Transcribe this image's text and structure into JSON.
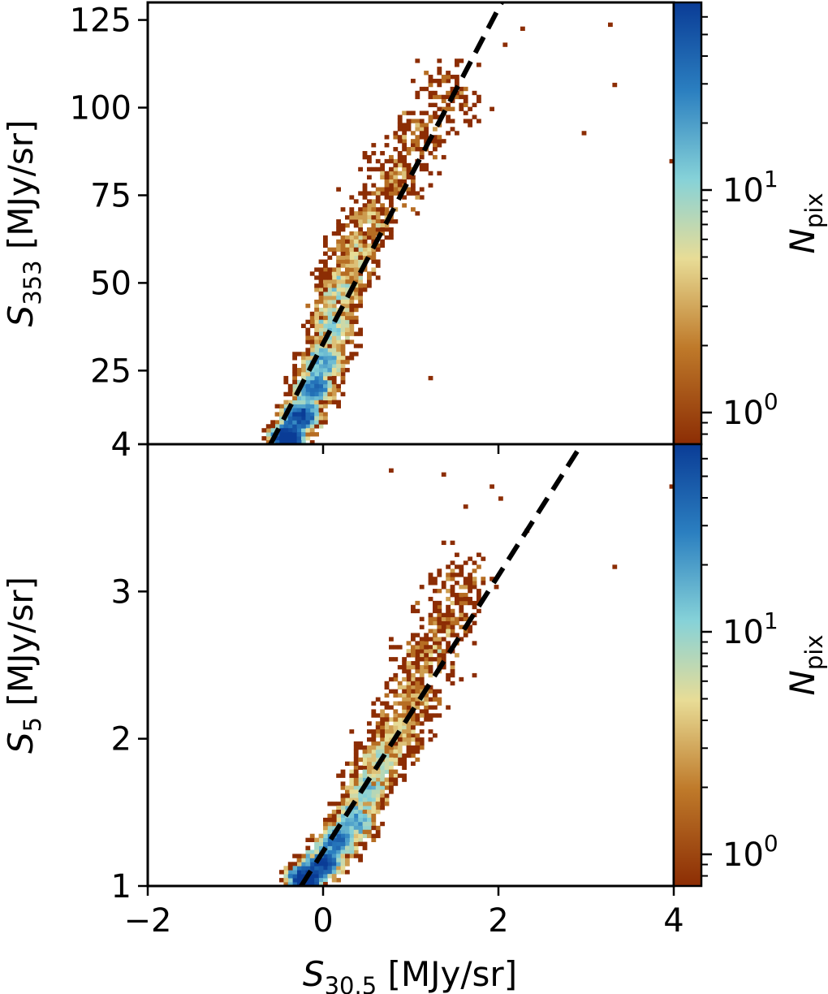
{
  "chart_data": [
    {
      "type": "heatmap",
      "panel": "top",
      "xlim": [
        -2,
        4
      ],
      "ylim": [
        4,
        130
      ],
      "ylabel": {
        "symbol": "S",
        "subscript": "353",
        "unit": " [MJy/sr]"
      },
      "x_ticks": [
        -2,
        0,
        2,
        4
      ],
      "y_ticks": [
        {
          "value": 4,
          "label": "4"
        },
        {
          "value": 25,
          "label": "25"
        },
        {
          "value": 50,
          "label": "50"
        },
        {
          "value": 75,
          "label": "75"
        },
        {
          "value": 100,
          "label": "100"
        },
        {
          "value": 125,
          "label": "125"
        }
      ],
      "fit_line": {
        "x": [
          -0.6,
          2.1
        ],
        "y": [
          4,
          133
        ],
        "style": "dashed",
        "color": "#000000"
      },
      "density_ridge": [
        {
          "x": -0.4,
          "y": 6
        },
        {
          "x": -0.25,
          "y": 12
        },
        {
          "x": -0.1,
          "y": 20
        },
        {
          "x": 0.0,
          "y": 28
        },
        {
          "x": 0.1,
          "y": 38
        },
        {
          "x": 0.2,
          "y": 48
        },
        {
          "x": 0.35,
          "y": 58
        },
        {
          "x": 0.55,
          "y": 68
        },
        {
          "x": 0.8,
          "y": 80
        },
        {
          "x": 1.1,
          "y": 92
        },
        {
          "x": 1.45,
          "y": 104
        }
      ],
      "outliers": [
        {
          "x": 2.3,
          "y": 122
        },
        {
          "x": 3.25,
          "y": 124
        },
        {
          "x": 3.35,
          "y": 107
        },
        {
          "x": 2.95,
          "y": 93
        },
        {
          "x": 4.0,
          "y": 85
        },
        {
          "x": 2.1,
          "y": 118
        },
        {
          "x": 1.2,
          "y": 23
        },
        {
          "x": 1.05,
          "y": 98
        },
        {
          "x": 1.3,
          "y": 88
        }
      ],
      "colorbar": {
        "label": {
          "symbol": "N",
          "subscript": "pix"
        },
        "scale": "log",
        "ticks": [
          {
            "label": "10",
            "exponent": "0"
          },
          {
            "label": "10",
            "exponent": "1"
          }
        ],
        "colors": [
          "#8c2d04",
          "#bf7a2a",
          "#e8dc96",
          "#86d2d8",
          "#2b7fc0",
          "#0a3c96"
        ]
      }
    },
    {
      "type": "heatmap",
      "panel": "bottom",
      "xlim": [
        -2,
        4
      ],
      "ylim": [
        1,
        4
      ],
      "xlabel": {
        "symbol": "S",
        "subscript": "30.5",
        "unit": " [MJy/sr]"
      },
      "ylabel": {
        "symbol": "S",
        "subscript": "5",
        "unit": " [MJy/sr]"
      },
      "x_ticks": [
        {
          "value": -2,
          "label": "−2"
        },
        {
          "value": 0,
          "label": "0"
        },
        {
          "value": 2,
          "label": "2"
        },
        {
          "value": 4,
          "label": "4"
        }
      ],
      "y_ticks": [
        {
          "value": 1,
          "label": "1"
        },
        {
          "value": 2,
          "label": "2"
        },
        {
          "value": 3,
          "label": "3"
        },
        {
          "value": 4,
          "label": "4"
        }
      ],
      "fit_line": {
        "x": [
          -0.25,
          2.95
        ],
        "y": [
          1.0,
          4.0
        ],
        "style": "dashed",
        "color": "#000000"
      },
      "density_ridge": [
        {
          "x": -0.2,
          "y": 1.05
        },
        {
          "x": 0.0,
          "y": 1.15
        },
        {
          "x": 0.15,
          "y": 1.3
        },
        {
          "x": 0.35,
          "y": 1.45
        },
        {
          "x": 0.5,
          "y": 1.65
        },
        {
          "x": 0.65,
          "y": 1.85
        },
        {
          "x": 0.85,
          "y": 2.05
        },
        {
          "x": 1.05,
          "y": 2.3
        },
        {
          "x": 1.2,
          "y": 2.55
        },
        {
          "x": 1.4,
          "y": 2.8
        },
        {
          "x": 1.6,
          "y": 3.05
        }
      ],
      "outliers": [
        {
          "x": 0.75,
          "y": 3.82
        },
        {
          "x": 1.35,
          "y": 3.8
        },
        {
          "x": 1.9,
          "y": 3.71
        },
        {
          "x": 2.05,
          "y": 3.62
        },
        {
          "x": 3.35,
          "y": 3.17
        },
        {
          "x": 4.0,
          "y": 3.72
        },
        {
          "x": 2.35,
          "y": 3.4
        },
        {
          "x": 1.6,
          "y": 3.57
        }
      ],
      "colorbar": {
        "label": {
          "symbol": "N",
          "subscript": "pix"
        },
        "scale": "log",
        "ticks": [
          {
            "label": "10",
            "exponent": "0"
          },
          {
            "label": "10",
            "exponent": "1"
          }
        ],
        "colors": [
          "#8c2d04",
          "#bf7a2a",
          "#e8dc96",
          "#86d2d8",
          "#2b7fc0",
          "#0a3c96"
        ]
      }
    }
  ]
}
